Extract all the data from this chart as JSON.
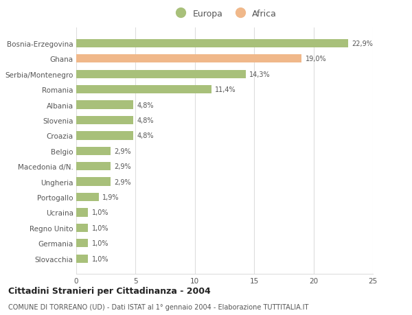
{
  "categories": [
    "Bosnia-Erzegovina",
    "Ghana",
    "Serbia/Montenegro",
    "Romania",
    "Albania",
    "Slovenia",
    "Croazia",
    "Belgio",
    "Macedonia d/N.",
    "Ungheria",
    "Portogallo",
    "Ucraina",
    "Regno Unito",
    "Germania",
    "Slovacchia"
  ],
  "values": [
    22.9,
    19.0,
    14.3,
    11.4,
    4.8,
    4.8,
    4.8,
    2.9,
    2.9,
    2.9,
    1.9,
    1.0,
    1.0,
    1.0,
    1.0
  ],
  "labels": [
    "22,9%",
    "19,0%",
    "14,3%",
    "11,4%",
    "4,8%",
    "4,8%",
    "4,8%",
    "2,9%",
    "2,9%",
    "2,9%",
    "1,9%",
    "1,0%",
    "1,0%",
    "1,0%",
    "1,0%"
  ],
  "continent": [
    "Europa",
    "Africa",
    "Europa",
    "Europa",
    "Europa",
    "Europa",
    "Europa",
    "Europa",
    "Europa",
    "Europa",
    "Europa",
    "Europa",
    "Europa",
    "Europa",
    "Europa"
  ],
  "color_europa": "#a8c07a",
  "color_africa": "#f0b88a",
  "background_color": "#ffffff",
  "grid_color": "#dddddd",
  "title": "Cittadini Stranieri per Cittadinanza - 2004",
  "subtitle": "COMUNE DI TORREANO (UD) - Dati ISTAT al 1° gennaio 2004 - Elaborazione TUTTITALIA.IT",
  "xlim": [
    0,
    25
  ],
  "xticks": [
    0,
    5,
    10,
    15,
    20,
    25
  ],
  "legend_europa": "Europa",
  "legend_africa": "Africa"
}
